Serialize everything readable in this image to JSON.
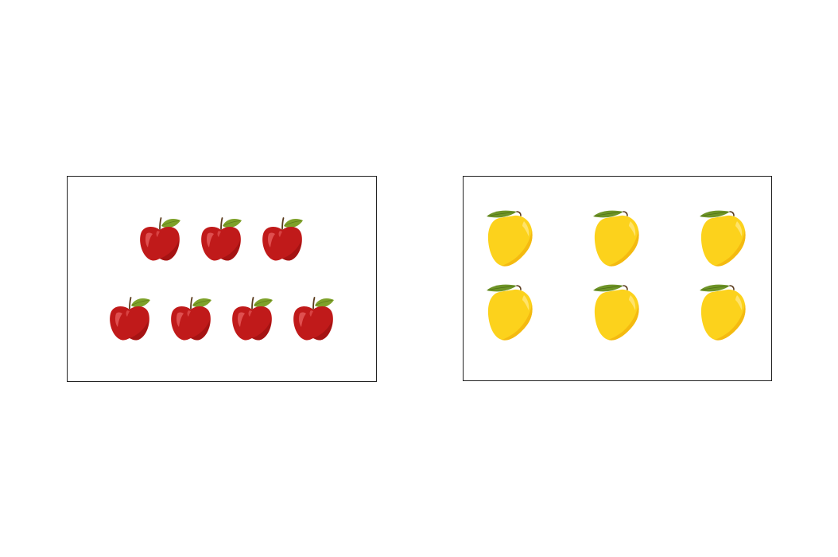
{
  "colors": {
    "apple_body": "#c01a1a",
    "apple_shade": "#9e1212",
    "apple_highlight": "#e25555",
    "leaf": "#7ea12a",
    "stem": "#5a3b1c",
    "mango_body": "#fcd21c",
    "mango_shade": "#f2b60e",
    "mango_highlight": "#ffe36a",
    "panel_border": "#222222"
  },
  "panels": [
    {
      "fruit": "apple",
      "icon": "apple-icon",
      "rows": [
        3,
        4
      ]
    },
    {
      "fruit": "mango",
      "icon": "mango-icon",
      "rows": [
        3,
        3
      ]
    }
  ]
}
